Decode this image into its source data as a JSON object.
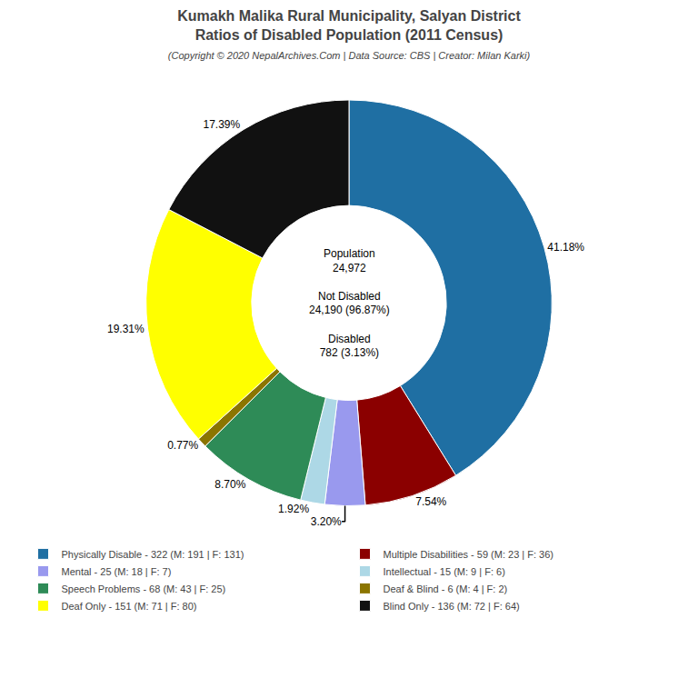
{
  "chart_data": {
    "type": "donut",
    "title": "Kumakh Malika Rural Municipality, Salyan District\nRatios of Disabled Population (2011 Census)",
    "subtitle": "(Copyright © 2020 NepalArchives.Com | Data Source: CBS | Creator: Milan Karki)",
    "annotations": [
      "Population",
      "24,972",
      "Not Disabled",
      "24,190 (96.87%)",
      "Disabled",
      "782 (3.13%)"
    ],
    "categories": [
      "Physically Disable - 322 (M: 191 | F: 131)",
      "Multiple Disabilities - 59 (M: 23 | F: 36)",
      "Mental - 25 (M: 18 | F: 7)",
      "Intellectual - 15 (M: 9 | F: 6)",
      "Speech Problems - 68 (M: 43 | F: 25)",
      "Deaf & Blind - 6 (M: 4 | F: 2)",
      "Deaf Only - 151 (M: 71 | F: 80)",
      "Blind Only - 136 (M: 72 | F: 64)"
    ],
    "values": [
      41.18,
      7.54,
      3.2,
      1.92,
      8.7,
      0.77,
      19.31,
      17.39
    ],
    "value_labels": [
      "41.18%",
      "7.54%",
      "3.20%",
      "1.92%",
      "8.70%",
      "0.77%",
      "19.31%",
      "17.39%"
    ],
    "colors": [
      "#1f6fa3",
      "#8b0000",
      "#9999ee",
      "#add8e6",
      "#2e8b57",
      "#8b7500",
      "#ffff00",
      "#111111"
    ],
    "data_labels": true,
    "legend": "bottom"
  }
}
